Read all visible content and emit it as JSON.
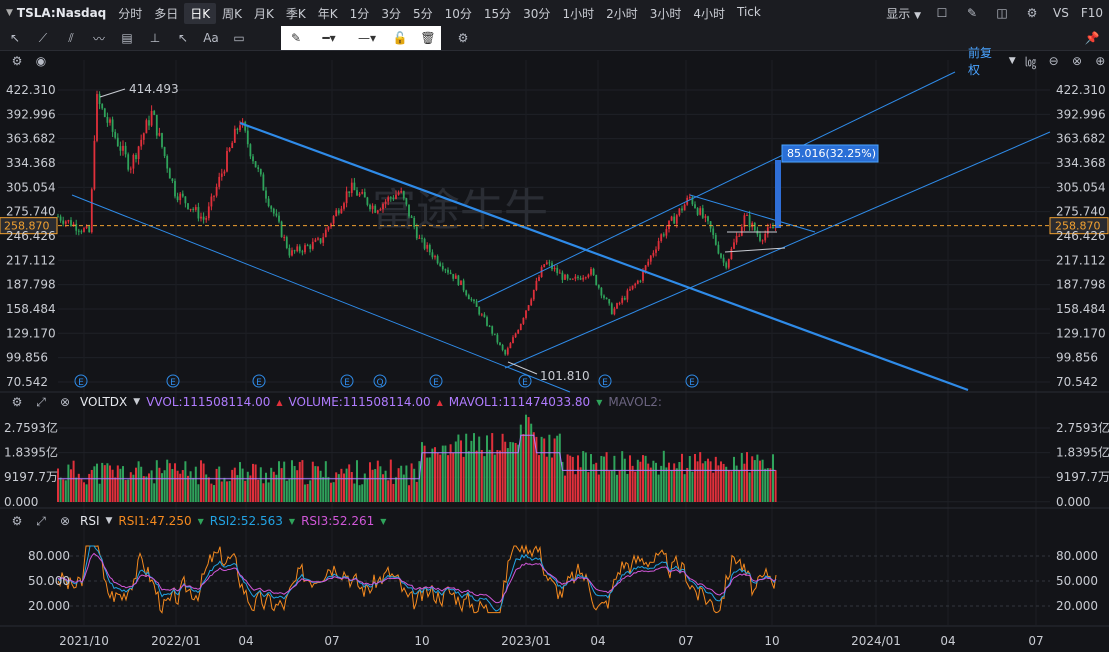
{
  "topbar": {
    "symbol": "TSLA:Nasdaq",
    "timeframes": [
      "分时",
      "多日",
      "日K",
      "周K",
      "月K",
      "季K",
      "年K",
      "1分",
      "3分",
      "5分",
      "10分",
      "15分",
      "30分",
      "1小时",
      "2小时",
      "3小时",
      "4小时",
      "Tick"
    ],
    "active": "日K",
    "display_label": "显示",
    "vs_label": "VS",
    "f10_label": "F10"
  },
  "main": {
    "adjust_label": "前复权",
    "watermark": "富途牛牛",
    "current_price": "258.870",
    "high_label": "414.493",
    "low_label": "101.810",
    "measure_label": "85.016(32.25%)",
    "yticks": [
      "422.310",
      "392.996",
      "363.682",
      "334.368",
      "305.054",
      "275.740",
      "246.426",
      "217.112",
      "187.798",
      "158.484",
      "129.170",
      "99.856",
      "70.542"
    ]
  },
  "volume": {
    "name": "VOLTDX",
    "vvol": "VVOL:111508114.00",
    "volume": "VOLUME:111508114.00",
    "mavol1": "MAVOL1:111474033.80",
    "mavol2": "MAVOL2:",
    "yticks": [
      "2.7593亿",
      "1.8395亿",
      "9197.7万",
      "0.000"
    ]
  },
  "rsi": {
    "name": "RSI",
    "rsi1": "RSI1:47.250",
    "rsi2": "RSI2:52.563",
    "rsi3": "RSI3:52.261",
    "yticks": [
      "80.000",
      "50.000",
      "20.000"
    ]
  },
  "xaxis": {
    "ticks": [
      "2021/10",
      "2022/01",
      "04",
      "07",
      "10",
      "2023/01",
      "04",
      "07",
      "10",
      "2024/01",
      "04",
      "07"
    ]
  },
  "colors": {
    "up": "#e0303b",
    "down": "#2fa35b",
    "channel": "#2f8be8",
    "price": "#f0a030",
    "rsi1": "#f58a1f",
    "rsi2": "#22a3e3",
    "rsi3": "#d057d8"
  },
  "chart_data": {
    "type": "line",
    "title": "",
    "x": [
      "2021/10",
      "2022/01",
      "2022/04",
      "2022/07",
      "2022/10",
      "2023/01",
      "2023/04",
      "2023/07",
      "2023/10"
    ],
    "series": [
      {
        "name": "",
        "values": [
          300,
          360,
          350,
          270,
          220,
          120,
          185,
          275,
          258.87
        ]
      }
    ],
    "ylim": [
      70.542,
      422.31
    ],
    "grid": true,
    "legend": "none"
  }
}
